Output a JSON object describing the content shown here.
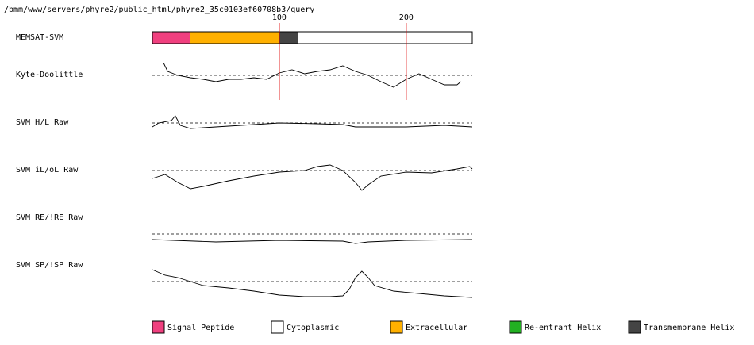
{
  "chart_data": {
    "type": "memsat",
    "title": "/bmm/www/servers/phyre2/public_html/phyre2_35c0103ef60708b3/query",
    "xlim": [
      0,
      252
    ],
    "xticks": [
      100,
      200
    ],
    "marker_color": "#e00000",
    "topology": {
      "name": "MEMSAT-SVM",
      "segments": [
        {
          "start": 0,
          "end": 30,
          "color": "#f0407f"
        },
        {
          "start": 30,
          "end": 100,
          "color": "#ffb000"
        },
        {
          "start": 100,
          "end": 115,
          "color": "#444444"
        },
        {
          "start": 115,
          "end": 252,
          "color": "#ffffff"
        }
      ]
    },
    "ylim": [
      -25,
      25
    ],
    "reference": 0,
    "tracks": [
      {
        "name": "Kyte-Doolittle",
        "x": [
          9,
          12,
          20,
          30,
          40,
          50,
          60,
          70,
          80,
          90,
          100,
          110,
          120,
          130,
          140,
          150,
          160,
          170,
          180,
          190,
          200,
          210,
          220,
          230,
          240,
          243
        ],
        "values": [
          15,
          5,
          0,
          -3,
          -5,
          -8,
          -5,
          -5,
          -3,
          -5,
          3,
          7,
          2,
          5,
          7,
          12,
          5,
          0,
          -8,
          -15,
          -5,
          2,
          -5,
          -12,
          -12,
          -8
        ]
      },
      {
        "name": "SVM H/L Raw",
        "x": [
          0,
          5,
          15,
          18,
          22,
          30,
          50,
          80,
          100,
          130,
          150,
          160,
          180,
          200,
          230,
          252
        ],
        "values": [
          -5,
          0,
          3,
          9,
          -3,
          -7,
          -5,
          -2,
          0,
          -1,
          -2,
          -5,
          -5,
          -5,
          -3,
          -5
        ]
      },
      {
        "name": "SVM iL/oL Raw",
        "x": [
          0,
          10,
          20,
          30,
          40,
          60,
          80,
          100,
          120,
          130,
          140,
          150,
          160,
          165,
          170,
          180,
          200,
          220,
          240,
          250,
          252
        ],
        "values": [
          -10,
          -5,
          -15,
          -23,
          -20,
          -13,
          -7,
          -2,
          0,
          5,
          7,
          0,
          -15,
          -25,
          -18,
          -7,
          -2,
          -3,
          2,
          5,
          2
        ]
      },
      {
        "name": "SVM RE/!RE Raw",
        "x": [
          0,
          50,
          100,
          150,
          160,
          170,
          200,
          252
        ],
        "values": [
          -7,
          -10,
          -8,
          -9,
          -12,
          -10,
          -8,
          -7
        ]
      },
      {
        "name": "SVM SP/!SP Raw",
        "x": [
          0,
          10,
          20,
          30,
          40,
          60,
          80,
          100,
          120,
          140,
          150,
          155,
          160,
          165,
          170,
          175,
          190,
          210,
          230,
          252
        ],
        "values": [
          15,
          8,
          5,
          0,
          -5,
          -8,
          -12,
          -17,
          -19,
          -19,
          -18,
          -10,
          5,
          13,
          5,
          -5,
          -12,
          -15,
          -18,
          -20
        ]
      }
    ],
    "legend": [
      {
        "name": "Signal Peptide",
        "color": "#f0407f"
      },
      {
        "name": "Cytoplasmic",
        "color": "#ffffff"
      },
      {
        "name": "Extracellular",
        "color": "#ffb000"
      },
      {
        "name": "Re-entrant Helix",
        "color": "#22b022"
      },
      {
        "name": "Transmembrane Helix",
        "color": "#444444"
      }
    ]
  }
}
